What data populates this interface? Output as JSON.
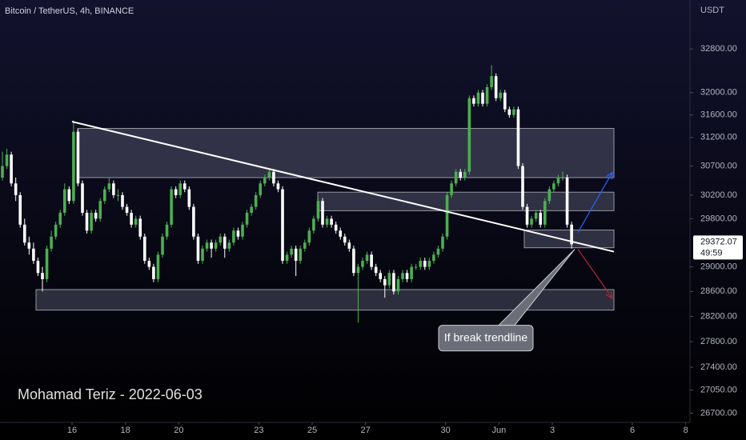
{
  "header": "Bitcoin / TetherUS, 4h, BINANCE",
  "currency": "USDT",
  "watermark": "Mohamad Teriz - 2022-06-03",
  "chart_data": {
    "type": "candlestick",
    "up_color": "#4caf50",
    "down_color": "#ffffff",
    "log_scale": true,
    "ylim": [
      26560,
      33720
    ],
    "yticks": [
      {
        "value": 32800,
        "label": "32800.00"
      },
      {
        "value": 32000,
        "label": "32000.00"
      },
      {
        "value": 31600,
        "label": "31600.00"
      },
      {
        "value": 31200,
        "label": "31200.00"
      },
      {
        "value": 30700,
        "label": "30700.00"
      },
      {
        "value": 30200,
        "label": "30200.00"
      },
      {
        "value": 29800,
        "label": "29800.00"
      },
      {
        "value": 29000,
        "label": "29000.00"
      },
      {
        "value": 28600,
        "label": "28600.00"
      },
      {
        "value": 28200,
        "label": "28200.00"
      },
      {
        "value": 27800,
        "label": "27800.00"
      },
      {
        "value": 27400,
        "label": "27400.00"
      },
      {
        "value": 27050,
        "label": "27050.00"
      },
      {
        "value": 26700,
        "label": "26700.00"
      }
    ],
    "xlim": [
      13.3,
      39.16
    ],
    "xticks": [
      16,
      18,
      20,
      23,
      25,
      27,
      30,
      {
        "value": 32,
        "label": "Jun"
      },
      {
        "value": 34,
        "label": "3"
      },
      {
        "value": 37,
        "label": "6"
      },
      {
        "value": 39,
        "label": "8"
      }
    ],
    "candles": [
      [
        30500,
        30950,
        30450,
        30700
      ],
      [
        30700,
        31000,
        30650,
        30900
      ],
      [
        30900,
        30950,
        30350,
        30400
      ],
      [
        30400,
        30500,
        30100,
        30200
      ],
      [
        30200,
        30250,
        29650,
        29700
      ],
      [
        29700,
        29800,
        29350,
        29400
      ],
      [
        29400,
        29500,
        29200,
        29300
      ],
      [
        29300,
        29400,
        29050,
        29100
      ],
      [
        29100,
        29150,
        28850,
        28900
      ],
      [
        28900,
        29000,
        28600,
        28800
      ],
      [
        28800,
        29350,
        28750,
        29300
      ],
      [
        29300,
        29600,
        29250,
        29500
      ],
      [
        29500,
        29750,
        29450,
        29700
      ],
      [
        29700,
        29950,
        29650,
        29900
      ],
      [
        29900,
        30400,
        29850,
        30300
      ],
      [
        30300,
        30350,
        30050,
        30100
      ],
      [
        30100,
        31500,
        30050,
        31300
      ],
      [
        31300,
        31350,
        30350,
        30400
      ],
      [
        30400,
        30450,
        29850,
        29900
      ],
      [
        29900,
        29950,
        29550,
        29600
      ],
      [
        29600,
        29950,
        29550,
        29900
      ],
      [
        29900,
        29950,
        29750,
        29800
      ],
      [
        29800,
        30150,
        29750,
        30100
      ],
      [
        30100,
        30350,
        30050,
        30300
      ],
      [
        30300,
        30500,
        30250,
        30400
      ],
      [
        30400,
        30450,
        30150,
        30200
      ],
      [
        30200,
        30300,
        30100,
        30200
      ],
      [
        30200,
        30250,
        29950,
        30000
      ],
      [
        30000,
        30050,
        29850,
        29900
      ],
      [
        29900,
        29950,
        29650,
        29700
      ],
      [
        29700,
        29850,
        29650,
        29800
      ],
      [
        29800,
        29850,
        29450,
        29500
      ],
      [
        29500,
        29550,
        29050,
        29100
      ],
      [
        29100,
        29150,
        28950,
        29000
      ],
      [
        29000,
        29050,
        28750,
        28800
      ],
      [
        28800,
        29250,
        28750,
        29200
      ],
      [
        29200,
        29550,
        29150,
        29500
      ],
      [
        29500,
        29750,
        29450,
        29700
      ],
      [
        29700,
        30350,
        29650,
        30300
      ],
      [
        30300,
        30350,
        30150,
        30200
      ],
      [
        30200,
        30450,
        30150,
        30400
      ],
      [
        30400,
        30450,
        30250,
        30300
      ],
      [
        30300,
        30350,
        29950,
        30000
      ],
      [
        30000,
        30050,
        29450,
        29500
      ],
      [
        29500,
        29550,
        29050,
        29100
      ],
      [
        29100,
        29350,
        29050,
        29300
      ],
      [
        29300,
        29450,
        29250,
        29400
      ],
      [
        29400,
        29450,
        29150,
        29300
      ],
      [
        29300,
        29450,
        29250,
        29400
      ],
      [
        29400,
        29550,
        29350,
        29500
      ],
      [
        29500,
        29550,
        29150,
        29300
      ],
      [
        29300,
        29450,
        29250,
        29400
      ],
      [
        29400,
        29650,
        29350,
        29600
      ],
      [
        29600,
        29650,
        29450,
        29500
      ],
      [
        29500,
        29750,
        29450,
        29700
      ],
      [
        29700,
        29950,
        29650,
        29900
      ],
      [
        29900,
        30050,
        29850,
        30000
      ],
      [
        30000,
        30250,
        29950,
        30200
      ],
      [
        30200,
        30450,
        30150,
        30400
      ],
      [
        30400,
        30550,
        30350,
        30500
      ],
      [
        30500,
        30650,
        30450,
        30600
      ],
      [
        30600,
        30650,
        30350,
        30400
      ],
      [
        30400,
        30450,
        30250,
        30300
      ],
      [
        30300,
        30350,
        29050,
        29100
      ],
      [
        29100,
        29250,
        29050,
        29200
      ],
      [
        29200,
        29350,
        29150,
        29300
      ],
      [
        29300,
        29350,
        28850,
        29100
      ],
      [
        29100,
        29350,
        29050,
        29300
      ],
      [
        29300,
        29450,
        29250,
        29400
      ],
      [
        29400,
        29650,
        29350,
        29600
      ],
      [
        29600,
        29850,
        29550,
        29800
      ],
      [
        29800,
        30150,
        29750,
        30100
      ],
      [
        30100,
        30150,
        29650,
        29700
      ],
      [
        29700,
        29850,
        29650,
        29800
      ],
      [
        29800,
        29850,
        29650,
        29700
      ],
      [
        29700,
        29750,
        29550,
        29600
      ],
      [
        29600,
        29650,
        29450,
        29500
      ],
      [
        29500,
        29550,
        29350,
        29400
      ],
      [
        29400,
        29450,
        29250,
        29300
      ],
      [
        29300,
        29350,
        28850,
        28900
      ],
      [
        28900,
        29050,
        28100,
        29000
      ],
      [
        29000,
        29150,
        28950,
        29100
      ],
      [
        29100,
        29250,
        29050,
        29200
      ],
      [
        29200,
        29250,
        28950,
        29000
      ],
      [
        29000,
        29050,
        28850,
        28900
      ],
      [
        28900,
        28950,
        28750,
        28800
      ],
      [
        28800,
        28850,
        28500,
        28700
      ],
      [
        28700,
        28950,
        28650,
        28900
      ],
      [
        28900,
        28950,
        28550,
        28600
      ],
      [
        28600,
        28850,
        28550,
        28800
      ],
      [
        28800,
        28950,
        28750,
        28900
      ],
      [
        28900,
        28950,
        28750,
        28800
      ],
      [
        28800,
        29050,
        28750,
        29000
      ],
      [
        29000,
        29050,
        28950,
        29000
      ],
      [
        29000,
        29150,
        28950,
        29100
      ],
      [
        29100,
        29150,
        28950,
        29000
      ],
      [
        29000,
        29150,
        28950,
        29100
      ],
      [
        29100,
        29250,
        29050,
        29200
      ],
      [
        29200,
        29350,
        29150,
        29300
      ],
      [
        29300,
        29550,
        29250,
        29500
      ],
      [
        29500,
        30250,
        29450,
        30200
      ],
      [
        30200,
        30450,
        30150,
        30400
      ],
      [
        30400,
        30650,
        30350,
        30600
      ],
      [
        30600,
        30650,
        30450,
        30500
      ],
      [
        30500,
        30650,
        30450,
        30600
      ],
      [
        30600,
        31950,
        30550,
        31900
      ],
      [
        31900,
        31950,
        31750,
        31800
      ],
      [
        31800,
        32050,
        31750,
        32000
      ],
      [
        32000,
        32050,
        31750,
        31800
      ],
      [
        31800,
        32150,
        31750,
        32100
      ],
      [
        32100,
        32500,
        32050,
        32300
      ],
      [
        32300,
        32350,
        31850,
        31900
      ],
      [
        31900,
        32050,
        31850,
        32000
      ],
      [
        32000,
        32050,
        31650,
        31700
      ],
      [
        31700,
        31750,
        31550,
        31600
      ],
      [
        31600,
        31750,
        31550,
        31700
      ],
      [
        31700,
        31750,
        30650,
        30700
      ],
      [
        30700,
        30750,
        29950,
        30000
      ],
      [
        30000,
        30050,
        29650,
        29700
      ],
      [
        29700,
        29850,
        29650,
        29800
      ],
      [
        29800,
        29950,
        29750,
        29900
      ],
      [
        29900,
        29950,
        29650,
        29700
      ],
      [
        29700,
        30150,
        29650,
        30100
      ],
      [
        30100,
        30350,
        30050,
        30300
      ],
      [
        30300,
        30450,
        30250,
        30400
      ],
      [
        30400,
        30550,
        30350,
        30500
      ],
      [
        30500,
        30600,
        30450,
        30500
      ],
      [
        30500,
        30550,
        29650,
        29700
      ],
      [
        29700,
        29750,
        29300,
        29372.07
      ]
    ],
    "last_price": 29372.07,
    "countdown": "49:59",
    "zones": [
      {
        "x": [
          16.21,
          36.31
        ],
        "y": [
          31360,
          30500
        ]
      },
      {
        "x": [
          25.21,
          36.31
        ],
        "y": [
          30250,
          29935
        ]
      },
      {
        "x": [
          32.95,
          36.31
        ],
        "y": [
          29610,
          29315
        ]
      },
      {
        "x": [
          14.65,
          36.31
        ],
        "y": [
          28630,
          28300
        ]
      }
    ],
    "trendline": {
      "x": [
        16,
        36.31
      ],
      "y": [
        31480,
        29250
      ],
      "color": "#ffffff"
    },
    "arrows": [
      {
        "x": [
          34.96,
          36.25
        ],
        "y": [
          29570,
          30590
        ],
        "color": "#2962ff"
      },
      {
        "x": [
          34.96,
          36.25
        ],
        "y": [
          29290,
          28490
        ],
        "color": "#b22833"
      }
    ],
    "annotation": {
      "text": "If break trendline",
      "x": 34.84,
      "y": 29290
    }
  }
}
